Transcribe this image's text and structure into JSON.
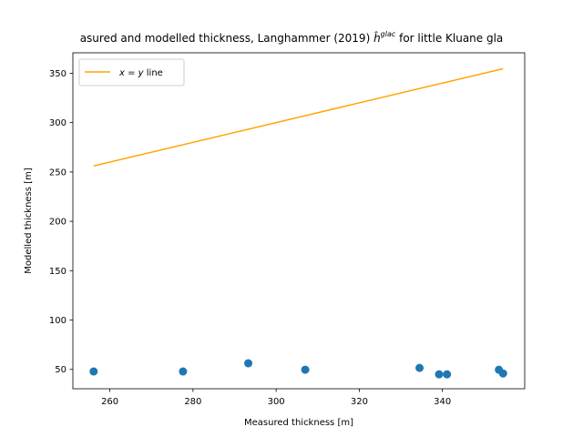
{
  "chart_data": {
    "type": "scatter",
    "title": "asured and modelled thickness, Langhammer (2019) ĥ^glac for little Kluane gla",
    "title_parts": {
      "before": "asured and modelled thickness, Langhammer (2019) ",
      "symbol": "ĥ",
      "superscript": "glac",
      "after": " for little Kluane gla"
    },
    "xlabel": "Measured thickness [m]",
    "ylabel": "Modelled thickness [m]",
    "xlim": [
      251.1,
      359.8
    ],
    "ylim": [
      30.4,
      370.7
    ],
    "xticks": [
      260,
      280,
      300,
      320,
      340
    ],
    "yticks": [
      50,
      100,
      150,
      200,
      250,
      300,
      350
    ],
    "grid": false,
    "legend_placement": "top-left",
    "series": [
      {
        "kind": "scatter",
        "color": "#1f77b4",
        "points": [
          [
            256.1,
            47.9
          ],
          [
            277.6,
            47.9
          ],
          [
            293.3,
            56.2
          ],
          [
            307.0,
            49.7
          ],
          [
            334.5,
            51.5
          ],
          [
            339.2,
            45.0
          ],
          [
            341.1,
            45.0
          ],
          [
            353.6,
            49.6
          ],
          [
            354.6,
            45.9
          ]
        ]
      },
      {
        "kind": "line",
        "name": "x = y line",
        "name_parts": {
          "x": "x",
          "eq": " = ",
          "y": "y",
          "rest": " line"
        },
        "color": "#ffa500",
        "points": [
          [
            256.1,
            256.1
          ],
          [
            354.6,
            354.6
          ]
        ]
      }
    ]
  }
}
